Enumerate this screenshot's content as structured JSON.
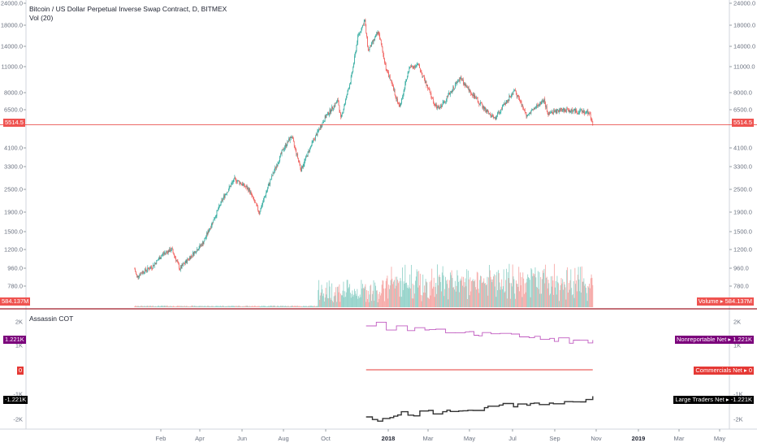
{
  "header": {
    "title": "Bitcoin / US Dollar Perpetual Inverse Swap Contract, D, BITMEX",
    "vol_label": "Vol (20)"
  },
  "cot_panel": {
    "title": "Assassin COT"
  },
  "colors": {
    "up": "#26a69a",
    "down": "#ef5350",
    "volume_up": "#93d2c9",
    "volume_down": "#f6a8a6",
    "nonreportable": "#c05bc0",
    "nonreportable_tag": "#7b007b",
    "commercials": "#e53935",
    "large_traders": "#333333",
    "large_traders_tag": "#000000",
    "price_line": "#e53935",
    "separator": "#a11b28"
  },
  "tags": {
    "price_left": "5514.5",
    "price_right": "5514.5",
    "volume_left": "584.137M",
    "volume_right": "Volume ▸ 584.137M",
    "nonrep_left": "1.221K",
    "nonrep_right": "Nonreportable Net ▸ 1.221K",
    "comm_left": "0",
    "comm_right": "Commercials Net ▸ 0",
    "large_left": "-1.221K",
    "large_right": "Large Traders Net ▸ -1.221K"
  },
  "chart_data": [
    {
      "type": "candlestick",
      "title": "Bitcoin / US Dollar Perpetual Inverse Swap Contract, D, BITMEX",
      "y_scale": "log",
      "y_ticks": [
        "24000.0",
        "18000.0",
        "14000.0",
        "11000.0",
        "8000.0",
        "6500.0",
        "4100.0",
        "3300.0",
        "2500.0",
        "1900.0",
        "1500.0",
        "1200.0",
        "960.0",
        "780.0"
      ],
      "x_ticks": [
        "Feb",
        "Apr",
        "Jun",
        "Aug",
        "Oct",
        "2018",
        "Mar",
        "May",
        "Jul",
        "Sep",
        "Nov",
        "2019",
        "Mar",
        "May"
      ],
      "last_price": 5514.5,
      "approx_close_path": [
        [
          "2017-01-15",
          960
        ],
        [
          "2017-01-18",
          870
        ],
        [
          "2017-01-25",
          920
        ],
        [
          "2017-02-10",
          990
        ],
        [
          "2017-02-25",
          1150
        ],
        [
          "2017-03-10",
          1220
        ],
        [
          "2017-03-22",
          960
        ],
        [
          "2017-04-05",
          1100
        ],
        [
          "2017-04-25",
          1320
        ],
        [
          "2017-05-12",
          1800
        ],
        [
          "2017-05-25",
          2300
        ],
        [
          "2017-06-10",
          2850
        ],
        [
          "2017-06-20",
          2700
        ],
        [
          "2017-07-01",
          2500
        ],
        [
          "2017-07-16",
          1900
        ],
        [
          "2017-08-01",
          2800
        ],
        [
          "2017-08-20",
          4100
        ],
        [
          "2017-09-01",
          4800
        ],
        [
          "2017-09-15",
          3200
        ],
        [
          "2017-10-01",
          4400
        ],
        [
          "2017-10-20",
          6000
        ],
        [
          "2017-11-08",
          7400
        ],
        [
          "2017-11-12",
          5900
        ],
        [
          "2017-11-28",
          10000
        ],
        [
          "2017-12-07",
          16000
        ],
        [
          "2017-12-17",
          19500
        ],
        [
          "2017-12-22",
          13500
        ],
        [
          "2018-01-06",
          17000
        ],
        [
          "2018-01-17",
          11000
        ],
        [
          "2018-02-06",
          6800
        ],
        [
          "2018-02-20",
          11000
        ],
        [
          "2018-03-05",
          11400
        ],
        [
          "2018-03-30",
          6900
        ],
        [
          "2018-04-05",
          6700
        ],
        [
          "2018-05-05",
          9700
        ],
        [
          "2018-05-30",
          7400
        ],
        [
          "2018-06-24",
          5900
        ],
        [
          "2018-07-24",
          8400
        ],
        [
          "2018-08-10",
          6200
        ],
        [
          "2018-09-05",
          7400
        ],
        [
          "2018-09-10",
          6300
        ],
        [
          "2018-10-01",
          6600
        ],
        [
          "2018-11-10",
          6400
        ],
        [
          "2018-11-15",
          5514.5
        ]
      ]
    },
    {
      "type": "bar",
      "title": "Vol (20)",
      "last_value": "584.137M"
    },
    {
      "type": "line",
      "title": "Assassin COT",
      "y_ticks": [
        "2K",
        "1K",
        "-1K",
        "-2K"
      ],
      "series": [
        {
          "name": "Nonreportable Net",
          "last": "1.221K"
        },
        {
          "name": "Commercials Net",
          "last": "0"
        },
        {
          "name": "Large Traders Net",
          "last": "-1.221K"
        }
      ]
    }
  ]
}
